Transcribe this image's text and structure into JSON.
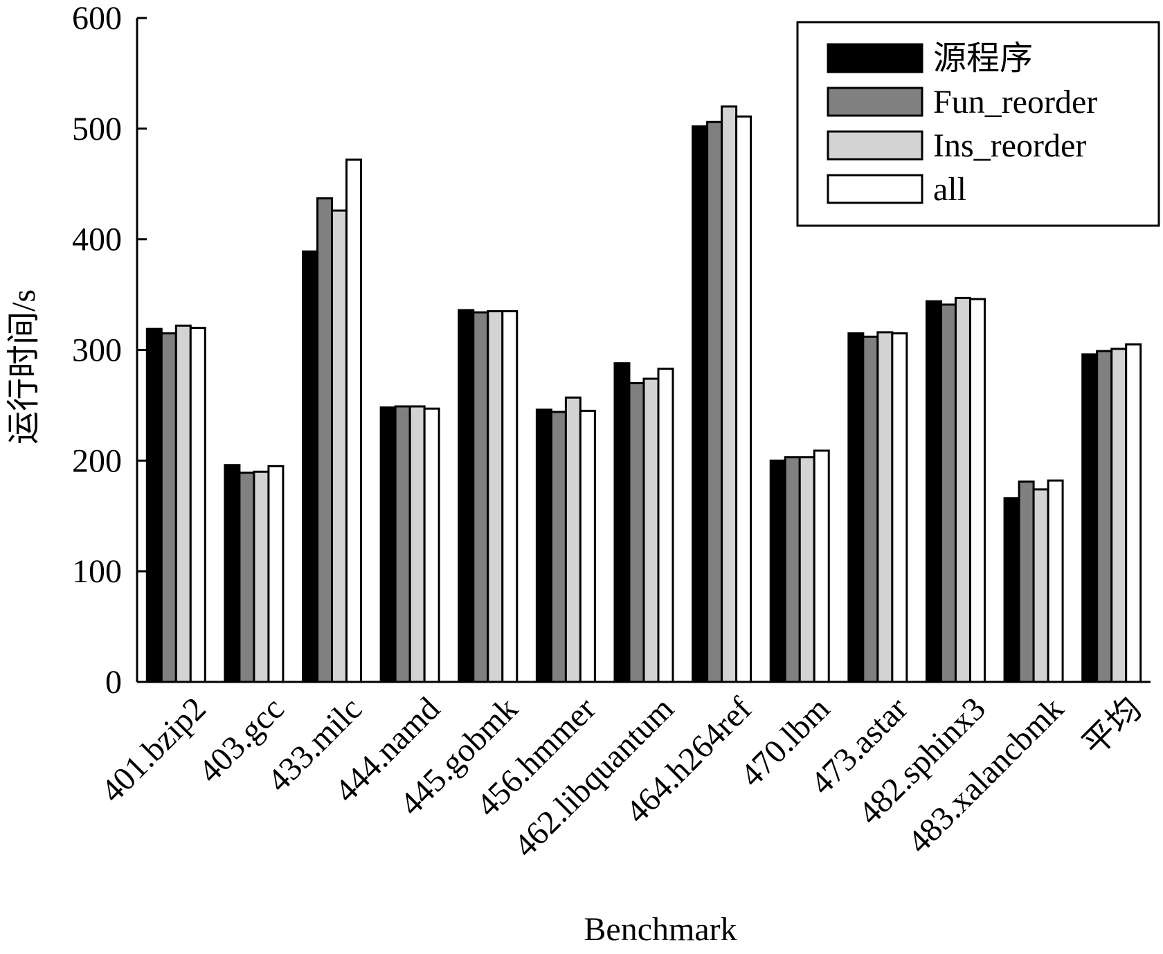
{
  "chart_data": {
    "type": "bar",
    "xlabel": "Benchmark",
    "ylabel": "运行时间/s",
    "ylim": [
      0,
      600
    ],
    "yticks": [
      0,
      100,
      200,
      300,
      400,
      500,
      600
    ],
    "grid": false,
    "legend_position": "top-right",
    "categories": [
      "401.bzip2",
      "403.gcc",
      "433.milc",
      "444.namd",
      "445.gobmk",
      "456.hmmer",
      "462.libquantum",
      "464.h264ref",
      "470.lbm",
      "473.astar",
      "482.sphinx3",
      "483.xalancbmk",
      "平均"
    ],
    "series": [
      {
        "name": "源程序",
        "color": "#000000",
        "values": [
          319,
          196,
          389,
          248,
          336,
          246,
          288,
          502,
          200,
          315,
          344,
          166,
          296
        ]
      },
      {
        "name": "Fun_reorder",
        "color": "#808080",
        "values": [
          315,
          189,
          437,
          249,
          334,
          244,
          270,
          506,
          203,
          312,
          341,
          181,
          299
        ]
      },
      {
        "name": "Ins_reorder",
        "color": "#d3d3d3",
        "values": [
          322,
          190,
          426,
          249,
          335,
          257,
          274,
          520,
          203,
          316,
          347,
          174,
          301
        ]
      },
      {
        "name": "all",
        "color": "#ffffff",
        "values": [
          320,
          195,
          472,
          247,
          335,
          245,
          283,
          511,
          209,
          315,
          346,
          182,
          305
        ]
      }
    ]
  }
}
